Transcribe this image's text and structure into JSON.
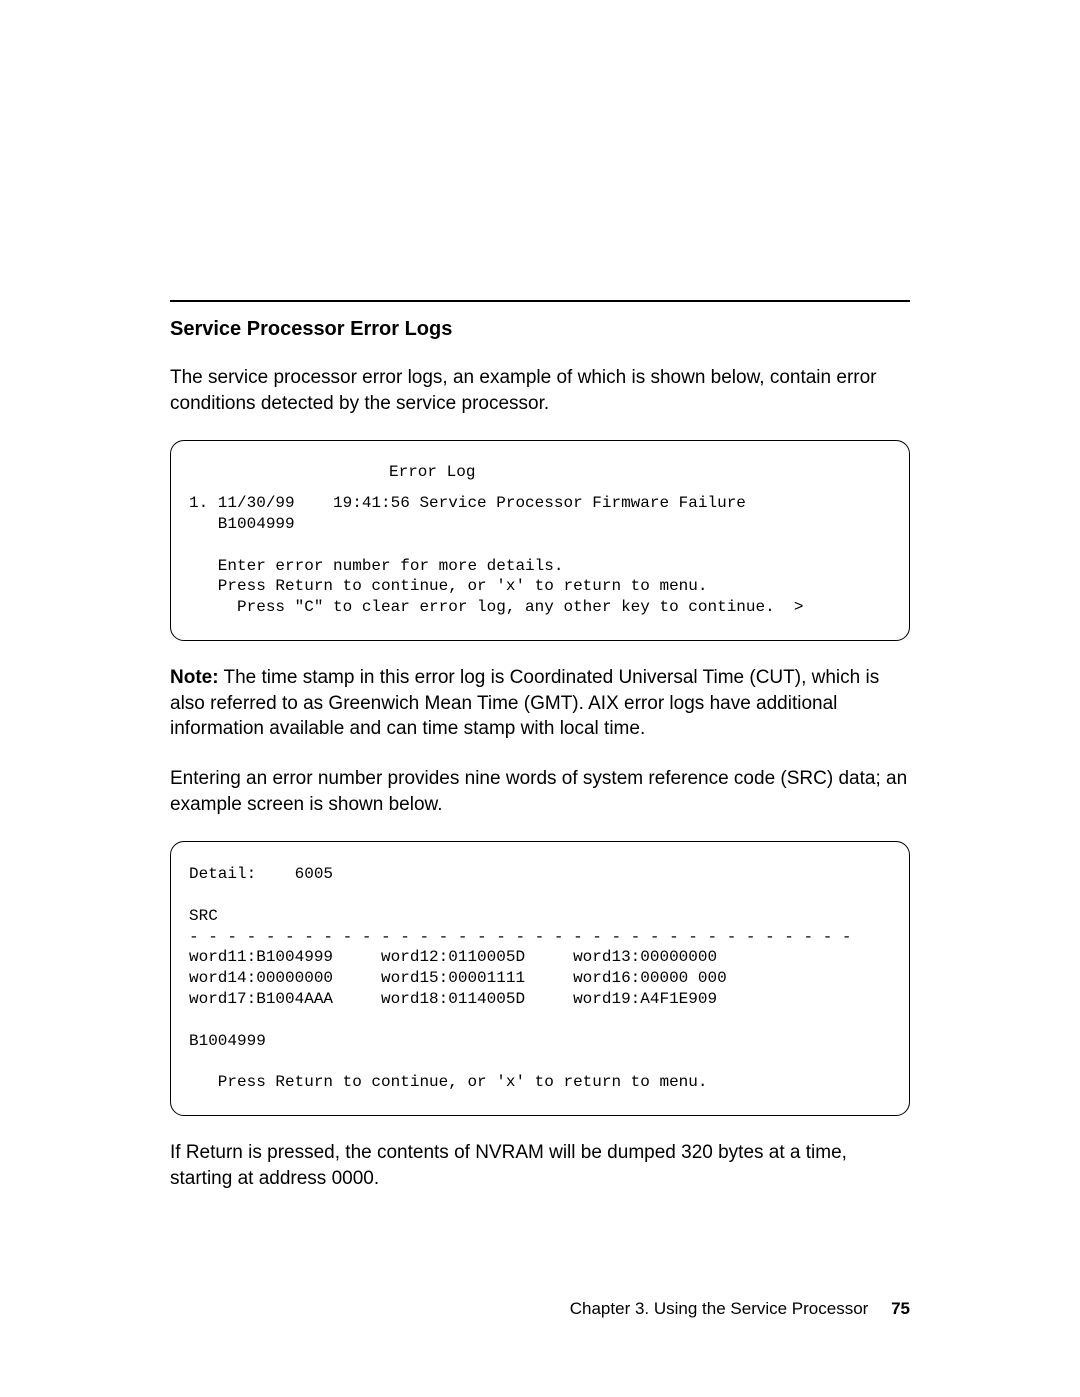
{
  "section_title": "Service Processor Error Logs",
  "intro": "The service processor error logs, an example of which is shown below, contain error conditions detected by the service processor.",
  "terminal1": {
    "title": "Error Log",
    "lines": "1. 11/30/99    19:41:56 Service Processor Firmware Failure\n   B1004999\n\n   Enter error number for more details.\n   Press Return to continue, or 'x' to return to menu.\n     Press \"C\" to clear error log, any other key to continue.  >"
  },
  "note_label": "Note:",
  "note_body": "The time stamp in this error log is Coordinated Universal Time (CUT), which is also referred to as Greenwich Mean Time (GMT).  AIX error logs have additional information available and can time stamp with local time.",
  "mid_para": "Entering an error number provides nine words of system reference code (SRC) data; an example screen is shown below.",
  "terminal2": {
    "lines": "Detail:    6005\n\nSRC\n- - - - - - - - - - - - - - - - - - - - - - - - - - - - - - - - - - -\nword11:B1004999     word12:0110005D     word13:00000000\nword14:00000000     word15:00001111     word16:00000 000\nword17:B1004AAA     word18:0114005D     word19:A4F1E909\n\nB1004999\n\n   Press Return to continue, or 'x' to return to menu."
  },
  "closing": "If Return is pressed, the contents of NVRAM will be dumped 320 bytes at a time, starting at address 0000.",
  "footer_chapter": "Chapter 3.  Using the Service Processor",
  "footer_page": "75"
}
